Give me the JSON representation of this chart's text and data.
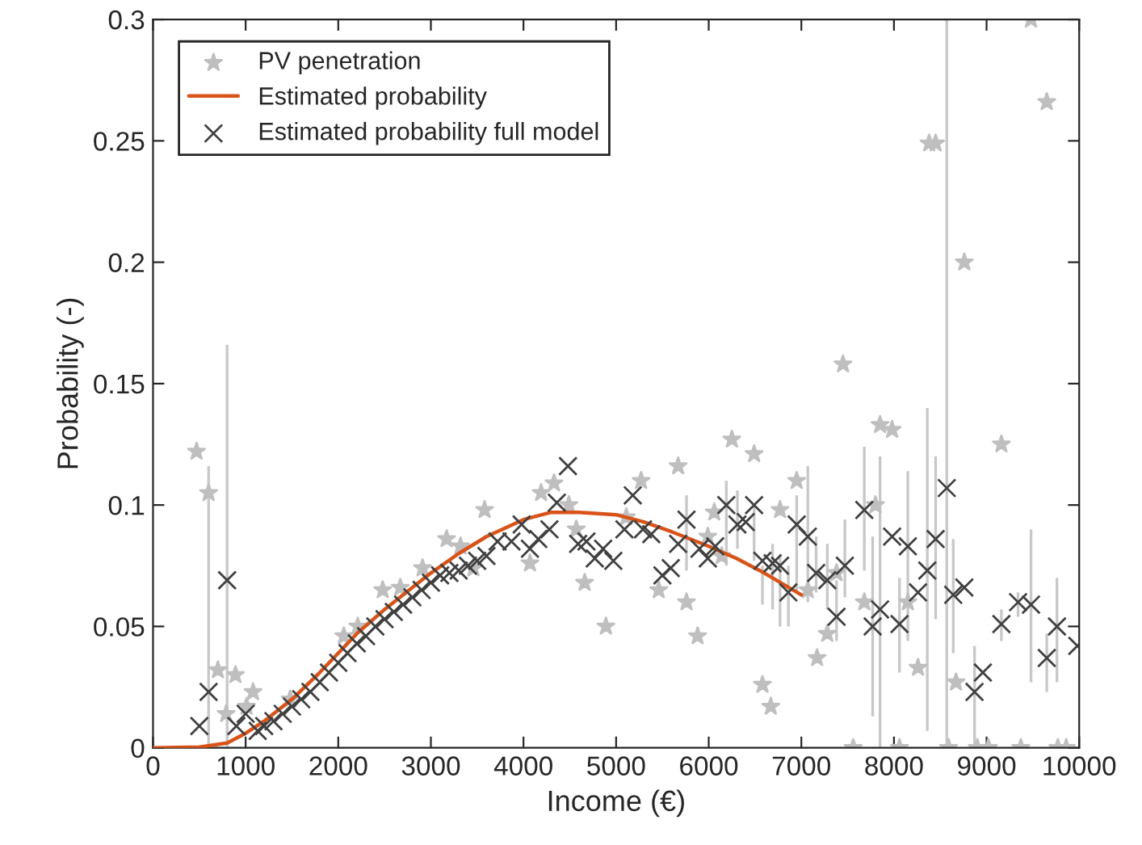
{
  "chart_data": {
    "type": "scatter",
    "xlabel": "Income (€)",
    "ylabel": "Probability (-)",
    "xlim": [
      0,
      10000
    ],
    "ylim": [
      0,
      0.3
    ],
    "xticks": [
      0,
      1000,
      2000,
      3000,
      4000,
      5000,
      6000,
      7000,
      8000,
      9000,
      10000
    ],
    "yticks": [
      0,
      0.05,
      0.1,
      0.15,
      0.2,
      0.25,
      0.3
    ],
    "grid": false,
    "legend": "top left",
    "series": [
      {
        "name": "PV penetration",
        "marker": "star",
        "color": "#bfbfbf",
        "x": [
          470,
          600,
          700,
          790,
          890,
          1010,
          1080,
          1480,
          2060,
          2210,
          2480,
          2670,
          2910,
          3170,
          3320,
          3460,
          3580,
          4070,
          4190,
          4330,
          4490,
          4570,
          4660,
          4890,
          5110,
          5270,
          5460,
          5670,
          5760,
          5880,
          5990,
          6060,
          6140,
          6250,
          6490,
          6580,
          6670,
          6770,
          6950,
          7070,
          7170,
          7280,
          7380,
          7450,
          7560,
          7680,
          7800,
          7850,
          7980,
          8060,
          8150,
          8260,
          8380,
          8450,
          8590,
          8670,
          8760,
          8900,
          9020,
          9160,
          9370,
          9480,
          9650,
          9770,
          9860
        ],
        "values": [
          0.122,
          0.105,
          0.032,
          0.014,
          0.03,
          0.017,
          0.023,
          0.02,
          0.046,
          0.05,
          0.065,
          0.066,
          0.074,
          0.086,
          0.083,
          0.074,
          0.098,
          0.076,
          0.105,
          0.109,
          0.1,
          0.09,
          0.068,
          0.05,
          0.095,
          0.11,
          0.065,
          0.116,
          0.06,
          0.046,
          0.087,
          0.097,
          0.079,
          0.127,
          0.121,
          0.026,
          0.017,
          0.098,
          0.11,
          0.065,
          0.037,
          0.047,
          0.072,
          0.158,
          0,
          0.06,
          0.1,
          0.133,
          0.131,
          0,
          0.06,
          0.033,
          0.249,
          0.249,
          0,
          0.027,
          0.2,
          0,
          0,
          0.125,
          0,
          0.3,
          0.266,
          0,
          0
        ]
      },
      {
        "name": "Estimated probability",
        "type": "line",
        "marker": "none",
        "color": "#d95319",
        "x": [
          0,
          500,
          800,
          1000,
          1200,
          1500,
          1800,
          2000,
          2200,
          2500,
          2800,
          3000,
          3300,
          3600,
          4000,
          4300,
          4600,
          5000,
          5300,
          5600,
          6000,
          6300,
          6600,
          7000
        ],
        "values": [
          0,
          0.0003,
          0.002,
          0.006,
          0.011,
          0.02,
          0.031,
          0.039,
          0.047,
          0.057,
          0.066,
          0.072,
          0.08,
          0.087,
          0.094,
          0.097,
          0.097,
          0.096,
          0.093,
          0.089,
          0.083,
          0.078,
          0.072,
          0.063
        ]
      },
      {
        "name": "Estimated probability full model",
        "marker": "cross",
        "color": "#404040",
        "x": [
          500,
          600,
          800,
          900,
          1000,
          1130,
          1200,
          1300,
          1400,
          1500,
          1600,
          1700,
          1800,
          1900,
          2000,
          2100,
          2200,
          2300,
          2400,
          2500,
          2600,
          2700,
          2800,
          2900,
          3000,
          3100,
          3200,
          3300,
          3400,
          3500,
          3600,
          3720,
          3870,
          3980,
          4070,
          4160,
          4280,
          4360,
          4480,
          4590,
          4680,
          4770,
          4860,
          4970,
          5090,
          5180,
          5290,
          5380,
          5500,
          5590,
          5670,
          5760,
          5900,
          5990,
          6070,
          6190,
          6310,
          6400,
          6490,
          6580,
          6690,
          6770,
          6860,
          6950,
          7070,
          7160,
          7280,
          7380,
          7470,
          7680,
          7770,
          7850,
          7980,
          8060,
          8150,
          8260,
          8360,
          8450,
          8570,
          8640,
          8760,
          8870,
          8960,
          9160,
          9340,
          9480,
          9650,
          9760,
          9980
        ],
        "values": [
          0.009,
          0.023,
          0.069,
          0.009,
          0.014,
          0.007,
          0.009,
          0.011,
          0.014,
          0.017,
          0.02,
          0.023,
          0.027,
          0.031,
          0.035,
          0.039,
          0.043,
          0.046,
          0.05,
          0.053,
          0.056,
          0.059,
          0.062,
          0.065,
          0.068,
          0.071,
          0.072,
          0.073,
          0.075,
          0.077,
          0.079,
          0.085,
          0.085,
          0.092,
          0.082,
          0.086,
          0.09,
          0.101,
          0.116,
          0.084,
          0.085,
          0.078,
          0.082,
          0.077,
          0.09,
          0.104,
          0.09,
          0.088,
          0.071,
          0.074,
          0.084,
          0.094,
          0.082,
          0.078,
          0.083,
          0.1,
          0.092,
          0.093,
          0.1,
          0.077,
          0.076,
          0.075,
          0.064,
          0.092,
          0.087,
          0.072,
          0.069,
          0.054,
          0.075,
          0.098,
          0.05,
          0.057,
          0.087,
          0.051,
          0.083,
          0.064,
          0.073,
          0.086,
          0.107,
          0.063,
          0.066,
          0.023,
          0.031,
          0.051,
          0.06,
          0.059,
          0.037,
          0.05,
          0.042
        ],
        "errors": [
          null,
          [
            0,
            0.116
          ],
          [
            0,
            0.166
          ],
          null,
          null,
          null,
          null,
          null,
          null,
          null,
          null,
          null,
          null,
          null,
          null,
          null,
          null,
          null,
          null,
          null,
          null,
          null,
          null,
          null,
          null,
          null,
          null,
          null,
          null,
          null,
          null,
          null,
          null,
          null,
          null,
          null,
          null,
          null,
          null,
          null,
          null,
          null,
          null,
          null,
          null,
          null,
          null,
          null,
          null,
          null,
          null,
          [
            0.073,
            0.104
          ],
          null,
          null,
          null,
          [
            0.075,
            0.11
          ],
          [
            0.082,
            0.106
          ],
          null,
          [
            0.077,
            0.1
          ],
          [
            0.059,
            0.075
          ],
          [
            0.057,
            0.084
          ],
          [
            0.05,
            0.079
          ],
          [
            0.05,
            0.075
          ],
          [
            0.064,
            0.104
          ],
          [
            0.06,
            0.116
          ],
          [
            0.064,
            0.087
          ],
          [
            0.057,
            0.084
          ],
          [
            0.044,
            0.069
          ],
          [
            0.062,
            0.094
          ],
          [
            0.073,
            0.124
          ],
          [
            0.013,
            0.087
          ],
          [
            0,
            0.12
          ],
          null,
          [
            0.031,
            0.07
          ],
          [
            0.044,
            0.114
          ],
          null,
          [
            0.007,
            0.14
          ],
          [
            0.053,
            0.12
          ],
          [
            0,
            0.3
          ],
          [
            0.039,
            0.086
          ],
          null,
          [
            0,
            0.042
          ],
          null,
          [
            0.044,
            0.057
          ],
          [
            0.054,
            0.064
          ],
          [
            0.027,
            0.09
          ],
          [
            0.023,
            0.047
          ],
          [
            0.027,
            0.07
          ],
          null
        ]
      }
    ]
  }
}
